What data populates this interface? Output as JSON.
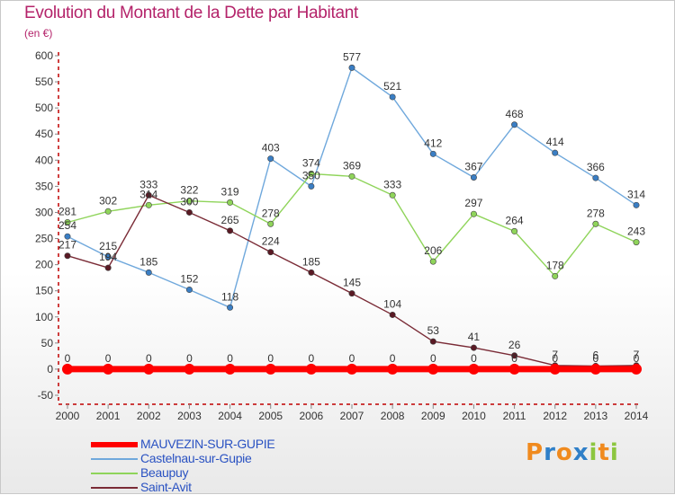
{
  "title": "Evolution du Montant de la Dette par Habitant",
  "subtitle": "(en €)",
  "logo": {
    "letters": [
      "P",
      "r",
      "o",
      "x",
      "i",
      "t",
      "i"
    ],
    "colors": [
      "#f08a1e",
      "#2f7fc8",
      "#f08a1e",
      "#2f7fc8",
      "#8cc63f",
      "#f08a1e",
      "#8cc63f"
    ]
  },
  "chart_data": {
    "type": "line",
    "title": "Evolution du Montant de la Dette par Habitant",
    "subtitle": "(en €)",
    "x": [
      2000,
      2001,
      2002,
      2003,
      2004,
      2005,
      2006,
      2007,
      2008,
      2009,
      2010,
      2011,
      2012,
      2013,
      2014
    ],
    "ylim": [
      -50,
      600
    ],
    "yticks": [
      -50,
      0,
      50,
      100,
      150,
      200,
      250,
      300,
      350,
      400,
      450,
      500,
      550,
      600
    ],
    "grid": false,
    "legend_position": "bottom-left",
    "series": [
      {
        "name": "MAUVEZIN-SUR-GUPIE",
        "color": "#ff0000",
        "values": [
          0,
          0,
          0,
          0,
          0,
          0,
          0,
          0,
          0,
          0,
          0,
          0,
          0,
          0,
          0
        ]
      },
      {
        "name": "Castelnau-sur-Gupie",
        "color": "#6fa8dc",
        "values": [
          254,
          215,
          185,
          152,
          118,
          403,
          350,
          577,
          521,
          412,
          367,
          468,
          414,
          366,
          314
        ]
      },
      {
        "name": "Beaupuy",
        "color": "#8fd45a",
        "values": [
          281,
          302,
          314,
          322,
          319,
          278,
          374,
          369,
          333,
          206,
          297,
          264,
          178,
          278,
          243
        ]
      },
      {
        "name": "Saint-Avit",
        "color": "#7a2b36",
        "values": [
          217,
          194,
          333,
          300,
          265,
          224,
          185,
          145,
          104,
          53,
          41,
          26,
          7,
          6,
          7
        ]
      }
    ]
  }
}
